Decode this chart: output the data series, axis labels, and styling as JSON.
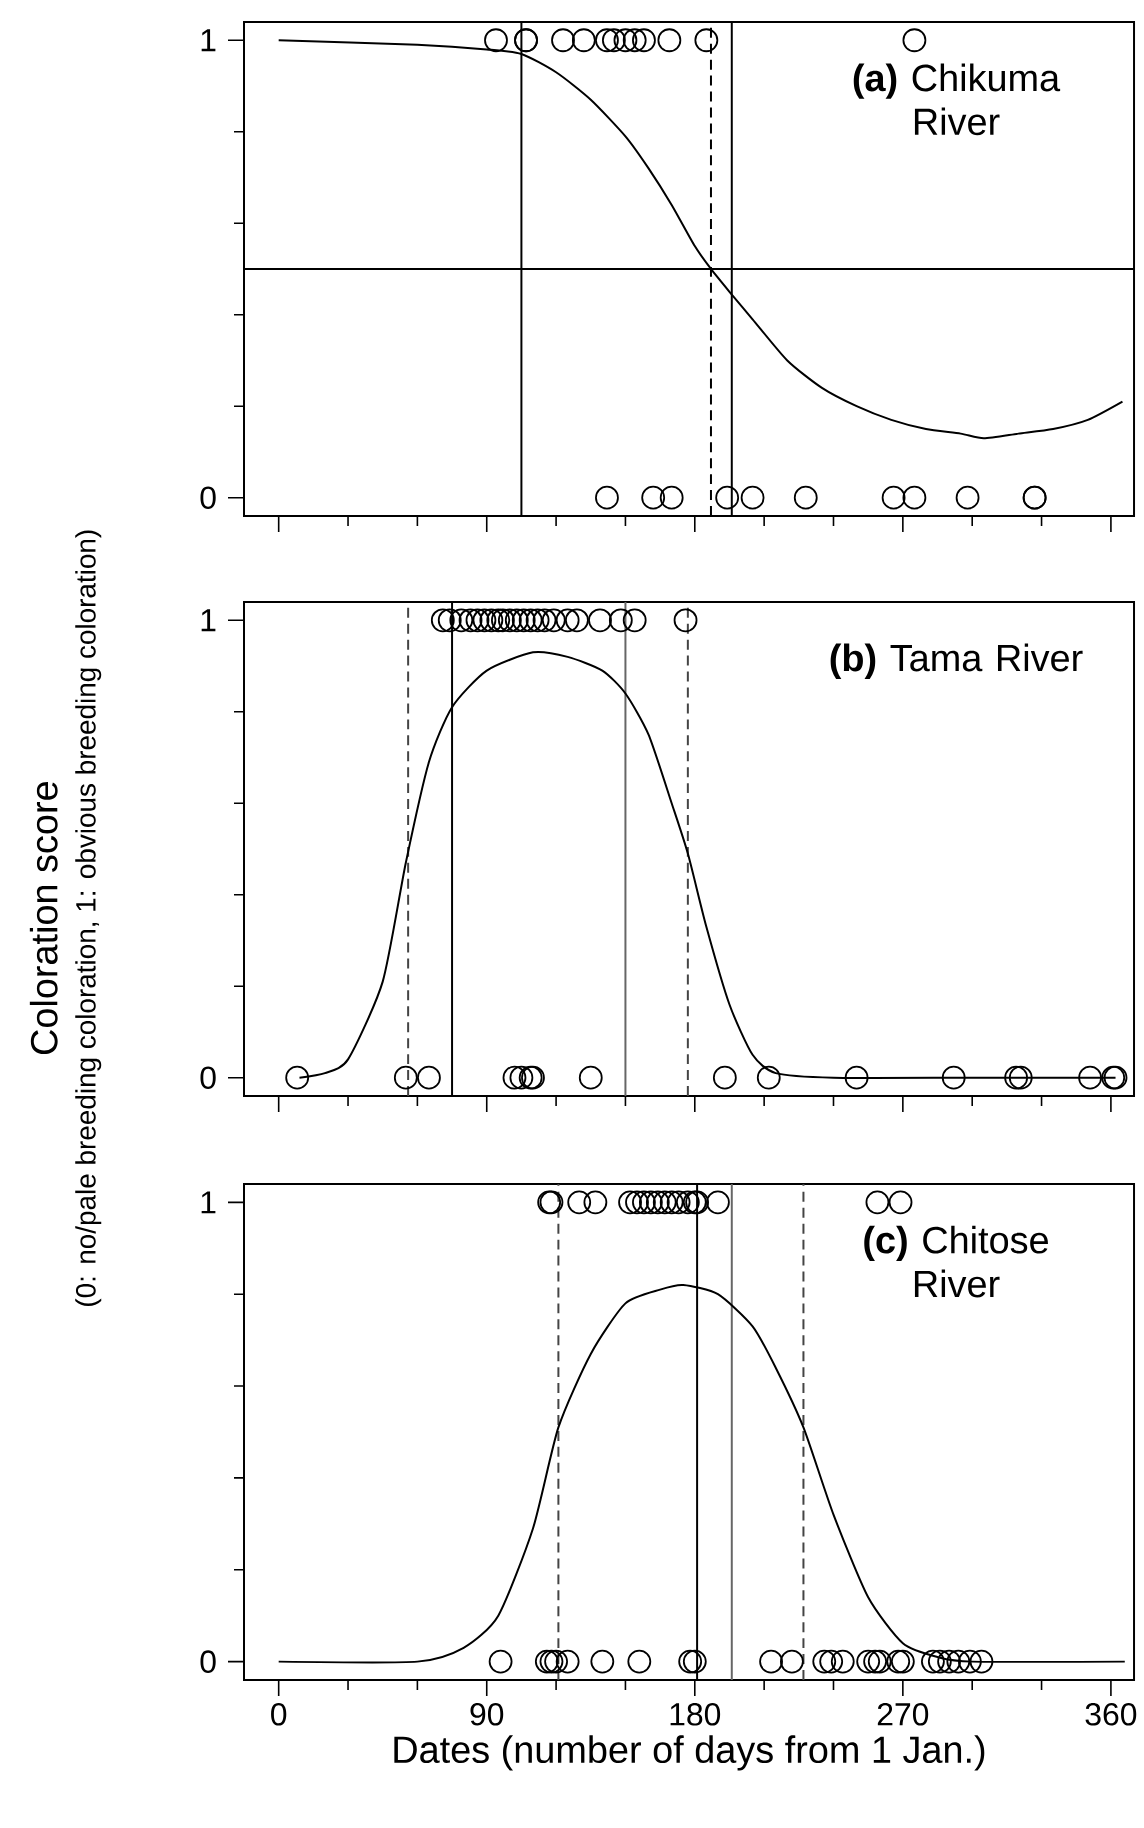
{
  "chart_data": [
    {
      "type": "scatter",
      "title": "**(a)** Chikuma River",
      "xlim": [
        -15,
        370
      ],
      "ylim": [
        -0.04,
        1.04
      ],
      "xticks": [
        0,
        {
          "value": 30,
          "label": null
        },
        {
          "value": 60,
          "label": null
        },
        90,
        {
          "value": 120,
          "label": null
        },
        {
          "value": 150,
          "label": null
        },
        180,
        {
          "value": 210,
          "label": null
        },
        {
          "value": 240,
          "label": null
        },
        270,
        {
          "value": 300,
          "label": null
        },
        {
          "value": 330,
          "label": null
        },
        360
      ],
      "yticks": [
        0,
        {
          "value": 0.2,
          "label": null
        },
        {
          "value": 0.4,
          "label": null
        },
        {
          "value": 0.6,
          "label": null
        },
        {
          "value": 0.8,
          "label": null
        },
        1
      ],
      "tick_labels": "y",
      "series": [
        {
          "marker": "circle",
          "color": "#000000",
          "x": [
            94,
            107,
            107,
            123,
            132,
            142,
            145,
            150,
            154,
            158,
            169,
            185,
            275,
            142,
            162,
            170,
            194,
            205,
            228,
            266,
            275,
            298,
            327,
            327
          ],
          "values": [
            1,
            1,
            1,
            1,
            1,
            1,
            1,
            1,
            1,
            1,
            1,
            1,
            1,
            0,
            0,
            0,
            0,
            0,
            0,
            0,
            0,
            0,
            0,
            0
          ]
        },
        {
          "type": "line",
          "marker": "none",
          "color": "#000000",
          "x": [
            0,
            60,
            90,
            105,
            120,
            135,
            150,
            160,
            170,
            180,
            187,
            195,
            205,
            220,
            235,
            250,
            265,
            280,
            295,
            305,
            320,
            335,
            350,
            365
          ],
          "values": [
            1.0,
            0.99,
            0.98,
            0.97,
            0.93,
            0.87,
            0.79,
            0.72,
            0.64,
            0.55,
            0.5,
            0.45,
            0.39,
            0.3,
            0.24,
            0.2,
            0.17,
            0.15,
            0.14,
            0.13,
            0.14,
            0.15,
            0.17,
            0.21
          ]
        }
      ],
      "ref_lines": [
        {
          "axis": "x",
          "value": 105,
          "line_style": "solid",
          "color": "#000000"
        },
        {
          "axis": "x",
          "value": 187,
          "line_style": "dashed",
          "color": "#000000"
        },
        {
          "axis": "x",
          "value": 196,
          "line_style": "solid",
          "color": "#000000"
        },
        {
          "axis": "y",
          "value": 0.5,
          "line_style": "solid",
          "color": "#000000"
        }
      ]
    },
    {
      "type": "scatter",
      "title": "**(b)** Tama River",
      "ylabel": "Coloration score",
      "annotations": [
        "(0: no/pale breeding coloration, 1: obvious breeding coloration)"
      ],
      "xlim": [
        -15,
        370
      ],
      "ylim": [
        -0.04,
        1.04
      ],
      "xticks": [
        0,
        {
          "value": 30,
          "label": null
        },
        {
          "value": 60,
          "label": null
        },
        90,
        {
          "value": 120,
          "label": null
        },
        {
          "value": 150,
          "label": null
        },
        180,
        {
          "value": 210,
          "label": null
        },
        {
          "value": 240,
          "label": null
        },
        270,
        {
          "value": 300,
          "label": null
        },
        {
          "value": 330,
          "label": null
        },
        360
      ],
      "yticks": [
        0,
        {
          "value": 0.2,
          "label": null
        },
        {
          "value": 0.4,
          "label": null
        },
        {
          "value": 0.6,
          "label": null
        },
        {
          "value": 0.8,
          "label": null
        },
        1
      ],
      "tick_labels": "y",
      "series": [
        {
          "marker": "circle",
          "color": "#000000",
          "x": [
            71,
            74,
            79,
            83,
            86,
            89,
            92,
            95,
            97,
            100,
            103,
            106,
            109,
            112,
            115,
            119,
            125,
            129,
            139,
            148,
            154,
            176,
            8,
            55,
            65,
            102,
            105,
            109,
            110,
            135,
            193,
            212,
            250,
            292,
            319,
            321,
            351,
            361,
            362
          ],
          "values": [
            1,
            1,
            1,
            1,
            1,
            1,
            1,
            1,
            1,
            1,
            1,
            1,
            1,
            1,
            1,
            1,
            1,
            1,
            1,
            1,
            1,
            1,
            0,
            0,
            0,
            0,
            0,
            0,
            0,
            0,
            0,
            0,
            0,
            0,
            0,
            0,
            0,
            0,
            0
          ]
        },
        {
          "type": "line",
          "marker": "none",
          "color": "#000000",
          "x": [
            9,
            20,
            30,
            45,
            55,
            65,
            75,
            90,
            110,
            125,
            140,
            150,
            160,
            170,
            177,
            185,
            195,
            205,
            215,
            240,
            300,
            362
          ],
          "values": [
            0.0,
            0.01,
            0.04,
            0.21,
            0.47,
            0.69,
            0.81,
            0.89,
            0.93,
            0.92,
            0.89,
            0.84,
            0.75,
            0.6,
            0.49,
            0.33,
            0.16,
            0.05,
            0.01,
            0.0,
            0.0,
            0.0
          ]
        }
      ],
      "ref_lines": [
        {
          "axis": "x",
          "value": 56,
          "line_style": "dashed",
          "color": "#444444"
        },
        {
          "axis": "x",
          "value": 75,
          "line_style": "solid",
          "color": "#000000"
        },
        {
          "axis": "x",
          "value": 150,
          "line_style": "solid",
          "color": "#666666"
        },
        {
          "axis": "x",
          "value": 177,
          "line_style": "dashed",
          "color": "#444444"
        }
      ]
    },
    {
      "type": "scatter",
      "title": "**(c)** Chitose River",
      "xlabel": "Dates (number of days from 1 Jan.)",
      "xlim": [
        -15,
        370
      ],
      "ylim": [
        -0.04,
        1.04
      ],
      "xticks": [
        0,
        {
          "value": 30,
          "label": null
        },
        {
          "value": 60,
          "label": null
        },
        90,
        {
          "value": 120,
          "label": null
        },
        {
          "value": 150,
          "label": null
        },
        180,
        {
          "value": 210,
          "label": null
        },
        {
          "value": 240,
          "label": null
        },
        270,
        {
          "value": 300,
          "label": null
        },
        {
          "value": 330,
          "label": null
        },
        360
      ],
      "yticks": [
        0,
        {
          "value": 0.2,
          "label": null
        },
        {
          "value": 0.4,
          "label": null
        },
        {
          "value": 0.6,
          "label": null
        },
        {
          "value": 0.8,
          "label": null
        },
        1
      ],
      "series": [
        {
          "marker": "circle",
          "color": "#000000",
          "x": [
            117,
            118,
            130,
            137,
            152,
            155,
            158,
            161,
            164,
            167,
            170,
            173,
            177,
            180,
            181,
            190,
            259,
            269,
            96,
            116,
            118,
            120,
            125,
            140,
            156,
            178,
            180,
            213,
            222,
            236,
            239,
            244,
            255,
            258,
            260,
            268,
            270,
            283,
            286,
            290,
            294,
            299,
            304
          ],
          "values": [
            1,
            1,
            1,
            1,
            1,
            1,
            1,
            1,
            1,
            1,
            1,
            1,
            1,
            1,
            1,
            1,
            1,
            1,
            0,
            0,
            0,
            0,
            0,
            0,
            0,
            0,
            0,
            0,
            0,
            0,
            0,
            0,
            0,
            0,
            0,
            0,
            0,
            0,
            0,
            0,
            0,
            0,
            0
          ]
        },
        {
          "type": "line",
          "marker": "none",
          "color": "#000000",
          "x": [
            0,
            60,
            80,
            95,
            110,
            121,
            135,
            150,
            165,
            175,
            190,
            205,
            215,
            227,
            240,
            255,
            270,
            285,
            300,
            366
          ],
          "values": [
            0.0,
            0.0,
            0.03,
            0.1,
            0.29,
            0.51,
            0.67,
            0.78,
            0.81,
            0.82,
            0.8,
            0.73,
            0.64,
            0.51,
            0.32,
            0.14,
            0.04,
            0.01,
            0.0,
            0.0
          ]
        }
      ],
      "ref_lines": [
        {
          "axis": "x",
          "value": 121,
          "line_style": "dashed",
          "color": "#444444"
        },
        {
          "axis": "x",
          "value": 181,
          "line_style": "solid",
          "color": "#000000"
        },
        {
          "axis": "x",
          "value": 196,
          "line_style": "solid",
          "color": "#666666"
        },
        {
          "axis": "x",
          "value": 227,
          "line_style": "dashed",
          "color": "#444444"
        }
      ]
    }
  ]
}
